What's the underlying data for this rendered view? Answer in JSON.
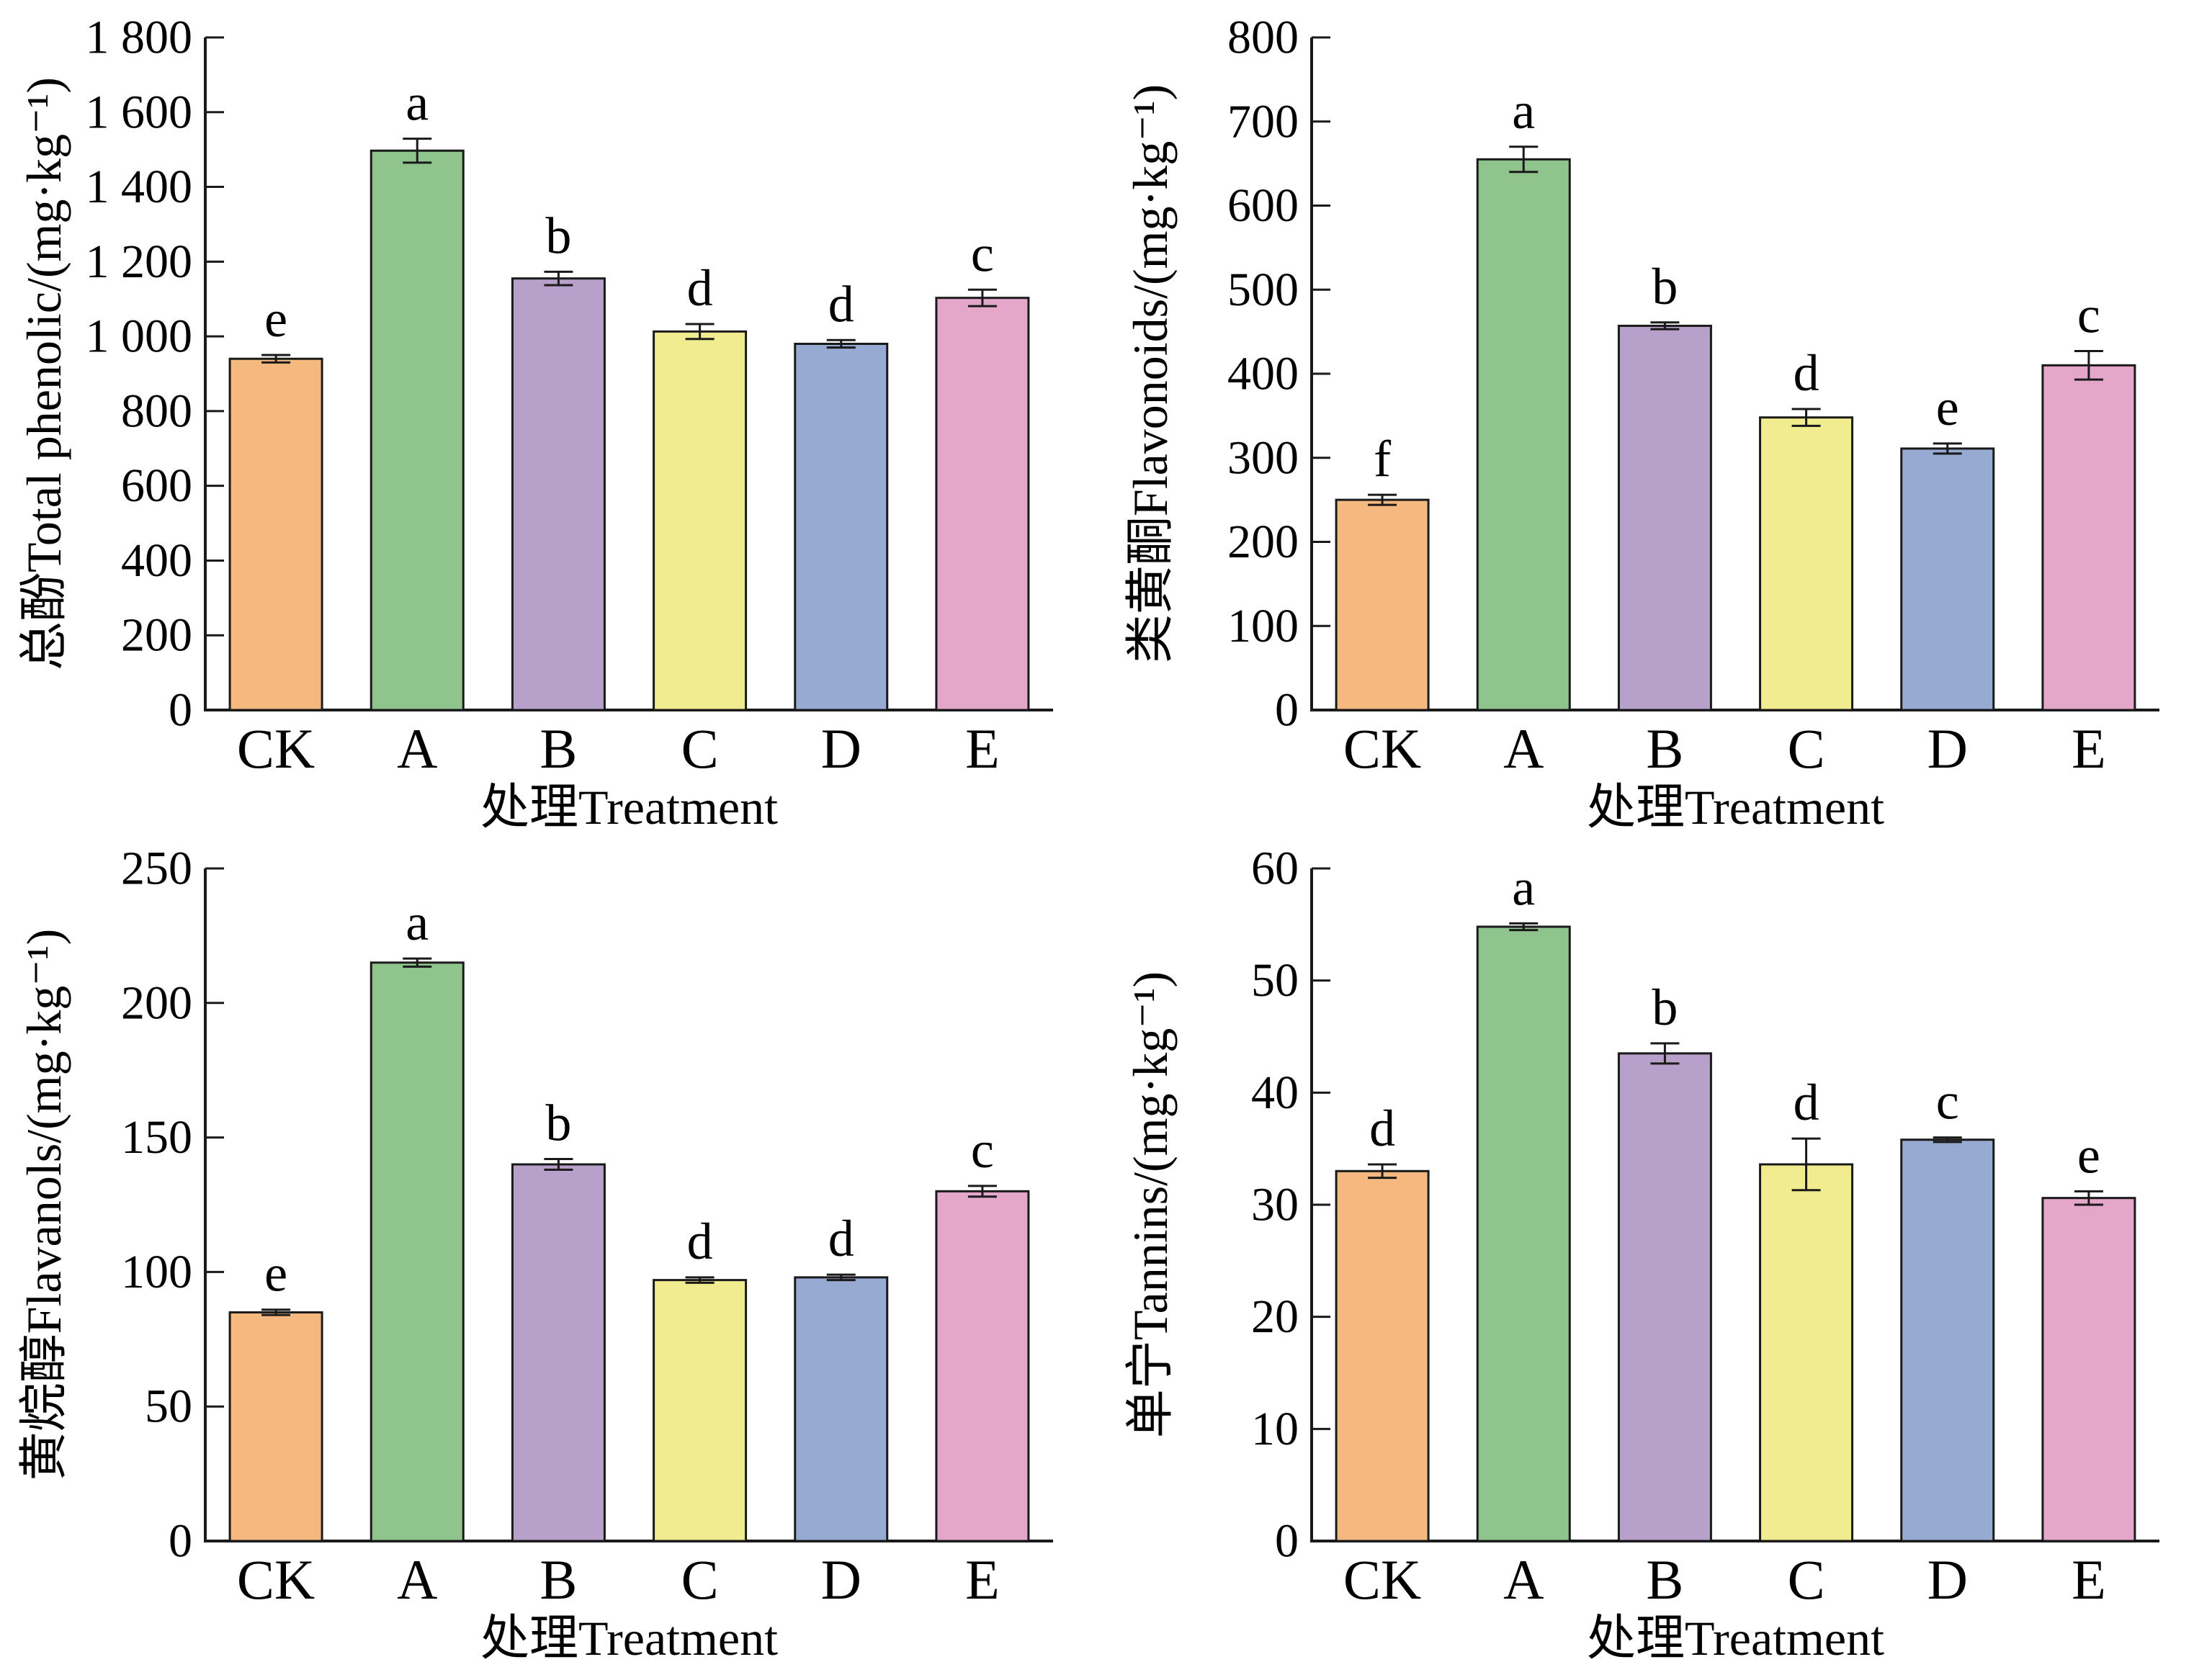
{
  "figure": {
    "background": "#ffffff",
    "palette": {
      "bar_fill": [
        "#F5B87F",
        "#90C48D",
        "#B7A0C9",
        "#F0EC8F",
        "#96AAD2",
        "#E4A7C9"
      ],
      "bar_stroke": "#1a1a1a",
      "axis_color": "#1a1a1a",
      "text_color": "#000000"
    }
  },
  "chart_data": [
    {
      "type": "bar",
      "position": "top-left",
      "name": "total-phenolic",
      "ylabel": "总酚Total phenolic/(mg·kg⁻¹)",
      "xlabel": "处理Treatment",
      "categories": [
        "CK",
        "A",
        "B",
        "C",
        "D",
        "E"
      ],
      "values": [
        940,
        1497,
        1155,
        1013,
        980,
        1103
      ],
      "errors": [
        10,
        32,
        18,
        20,
        10,
        22
      ],
      "letters": [
        "e",
        "a",
        "b",
        "d",
        "d",
        "c"
      ],
      "ylim": [
        0,
        1800
      ],
      "ytick_step": 200,
      "ytick_labels": [
        "0",
        "200",
        "400",
        "600",
        "800",
        "1 000",
        "1 200",
        "1 400",
        "1 600",
        "1 800"
      ],
      "grid": "off",
      "legend": "none"
    },
    {
      "type": "bar",
      "position": "top-right",
      "name": "flavonoids",
      "ylabel": "类黄酮Flavonoids/(mg·kg⁻¹)",
      "xlabel": "处理Treatment",
      "categories": [
        "CK",
        "A",
        "B",
        "C",
        "D",
        "E"
      ],
      "values": [
        250,
        655,
        457,
        348,
        311,
        410
      ],
      "errors": [
        6,
        15,
        4,
        10,
        6,
        17
      ],
      "letters": [
        "f",
        "a",
        "b",
        "d",
        "e",
        "c"
      ],
      "ylim": [
        0,
        800
      ],
      "ytick_step": 100,
      "ytick_labels": [
        "0",
        "100",
        "200",
        "300",
        "400",
        "500",
        "600",
        "700",
        "800"
      ],
      "grid": "off",
      "legend": "none"
    },
    {
      "type": "bar",
      "position": "bottom-left",
      "name": "flavanols",
      "ylabel": "黄烷醇Flavanols/(mg·kg⁻¹)",
      "xlabel": "处理Treatment",
      "categories": [
        "CK",
        "A",
        "B",
        "C",
        "D",
        "E"
      ],
      "values": [
        85,
        215,
        140,
        97,
        98,
        130
      ],
      "errors": [
        1,
        1.5,
        2,
        1,
        1,
        2
      ],
      "letters": [
        "e",
        "a",
        "b",
        "d",
        "d",
        "c"
      ],
      "ylim": [
        0,
        250
      ],
      "ytick_step": 50,
      "ytick_labels": [
        "0",
        "50",
        "100",
        "150",
        "200",
        "250"
      ],
      "grid": "off",
      "legend": "none"
    },
    {
      "type": "bar",
      "position": "bottom-right",
      "name": "tannins",
      "ylabel": "单宁Tannins/(mg·kg⁻¹)",
      "xlabel": "处理Treatment",
      "categories": [
        "CK",
        "A",
        "B",
        "C",
        "D",
        "E"
      ],
      "values": [
        33,
        54.8,
        43.5,
        33.6,
        35.8,
        30.6
      ],
      "errors": [
        0.6,
        0.3,
        0.9,
        2.3,
        0.2,
        0.6
      ],
      "letters": [
        "d",
        "a",
        "b",
        "d",
        "c",
        "e"
      ],
      "ylim": [
        0,
        60
      ],
      "ytick_step": 10,
      "ytick_labels": [
        "0",
        "10",
        "20",
        "30",
        "40",
        "50",
        "60"
      ],
      "grid": "off",
      "legend": "none"
    }
  ]
}
